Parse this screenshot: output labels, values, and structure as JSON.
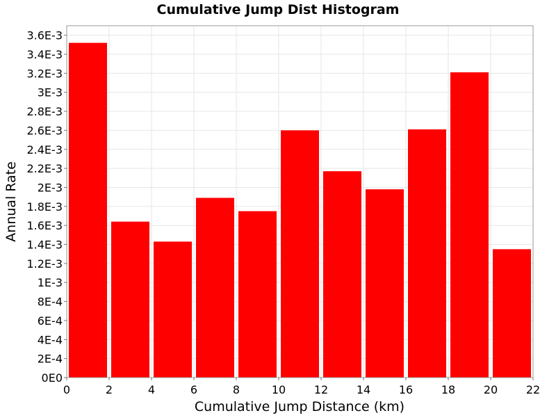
{
  "chart_data": {
    "type": "bar",
    "title": "Cumulative Jump Dist Histogram",
    "xlabel": "Cumulative Jump Distance (km)",
    "ylabel": "Annual Rate",
    "xlim": [
      0,
      22
    ],
    "ylim": [
      0,
      0.0037
    ],
    "grid": true,
    "legend": "none",
    "bar_color": "#ff0000",
    "bin_width": 2,
    "bins": [
      {
        "start": 0,
        "end": 2,
        "value": 0.00352
      },
      {
        "start": 2,
        "end": 4,
        "value": 0.00164
      },
      {
        "start": 4,
        "end": 6,
        "value": 0.00143
      },
      {
        "start": 6,
        "end": 8,
        "value": 0.00189
      },
      {
        "start": 8,
        "end": 10,
        "value": 0.00175
      },
      {
        "start": 10,
        "end": 12,
        "value": 0.0026
      },
      {
        "start": 12,
        "end": 14,
        "value": 0.00217
      },
      {
        "start": 14,
        "end": 16,
        "value": 0.00198
      },
      {
        "start": 16,
        "end": 18,
        "value": 0.00261
      },
      {
        "start": 18,
        "end": 20,
        "value": 0.00321
      },
      {
        "start": 20,
        "end": 22,
        "value": 0.00135
      }
    ],
    "x_ticks": [
      {
        "value": 0,
        "label": "0"
      },
      {
        "value": 2,
        "label": "2"
      },
      {
        "value": 4,
        "label": "4"
      },
      {
        "value": 6,
        "label": "6"
      },
      {
        "value": 8,
        "label": "8"
      },
      {
        "value": 10,
        "label": "10"
      },
      {
        "value": 12,
        "label": "12"
      },
      {
        "value": 14,
        "label": "14"
      },
      {
        "value": 16,
        "label": "16"
      },
      {
        "value": 18,
        "label": "18"
      },
      {
        "value": 20,
        "label": "20"
      },
      {
        "value": 22,
        "label": "22"
      }
    ],
    "y_ticks": [
      {
        "value": 0,
        "label": "0E0"
      },
      {
        "value": 0.0002,
        "label": "2E-4"
      },
      {
        "value": 0.0004,
        "label": "4E-4"
      },
      {
        "value": 0.0006,
        "label": "6E-4"
      },
      {
        "value": 0.0008,
        "label": "8E-4"
      },
      {
        "value": 0.001,
        "label": "1E-3"
      },
      {
        "value": 0.0012,
        "label": "1.2E-3"
      },
      {
        "value": 0.0014,
        "label": "1.4E-3"
      },
      {
        "value": 0.0016,
        "label": "1.6E-3"
      },
      {
        "value": 0.0018,
        "label": "1.8E-3"
      },
      {
        "value": 0.002,
        "label": "2E-3"
      },
      {
        "value": 0.0022,
        "label": "2.2E-3"
      },
      {
        "value": 0.0024,
        "label": "2.4E-3"
      },
      {
        "value": 0.0026,
        "label": "2.6E-3"
      },
      {
        "value": 0.0028,
        "label": "2.8E-3"
      },
      {
        "value": 0.003,
        "label": "3E-3"
      },
      {
        "value": 0.0032,
        "label": "3.2E-3"
      },
      {
        "value": 0.0034,
        "label": "3.4E-3"
      },
      {
        "value": 0.0036,
        "label": "3.6E-3"
      }
    ]
  }
}
